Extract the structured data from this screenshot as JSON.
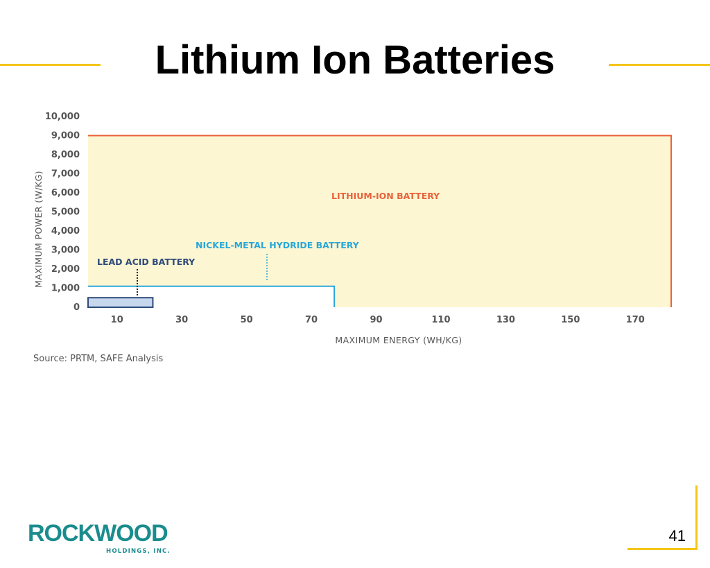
{
  "slide": {
    "title": "Lithium Ion Batteries",
    "source": "Source: PRTM, SAFE Analysis",
    "page_number": "41",
    "logo_text": "ROCKWOOD",
    "logo_subtext": "HOLDINGS, INC.",
    "accent_color": "#F5C518"
  },
  "chart_data": {
    "type": "area",
    "title": "",
    "xlabel": "MAXIMUM ENERGY (WH/KG)",
    "ylabel": "MAXIMUM POWER (W/KG)",
    "x_ticks": [
      "10",
      "30",
      "50",
      "70",
      "90",
      "110",
      "130",
      "150",
      "170"
    ],
    "y_ticks": [
      "0",
      "1,000",
      "2,000",
      "3,000",
      "4,000",
      "5,000",
      "6,000",
      "7,000",
      "8,000",
      "9,000",
      "10,000"
    ],
    "xlim": [
      0,
      180
    ],
    "ylim": [
      0,
      10000
    ],
    "series": [
      {
        "name": "LITHIUM-ION BATTERY",
        "x_max": 180,
        "y_max": 9000,
        "color": "#E8623A",
        "fill": "#FDF6D3"
      },
      {
        "name": "NICKEL-METAL HYDRIDE BATTERY",
        "x_max": 76,
        "y_max": 1100,
        "color": "#29A8D8",
        "fill": "#FFFFFF"
      },
      {
        "name": "LEAD ACID BATTERY",
        "x_max": 20,
        "y_max": 500,
        "color": "#2E4A7A",
        "fill": "#C7D8EE"
      }
    ]
  }
}
